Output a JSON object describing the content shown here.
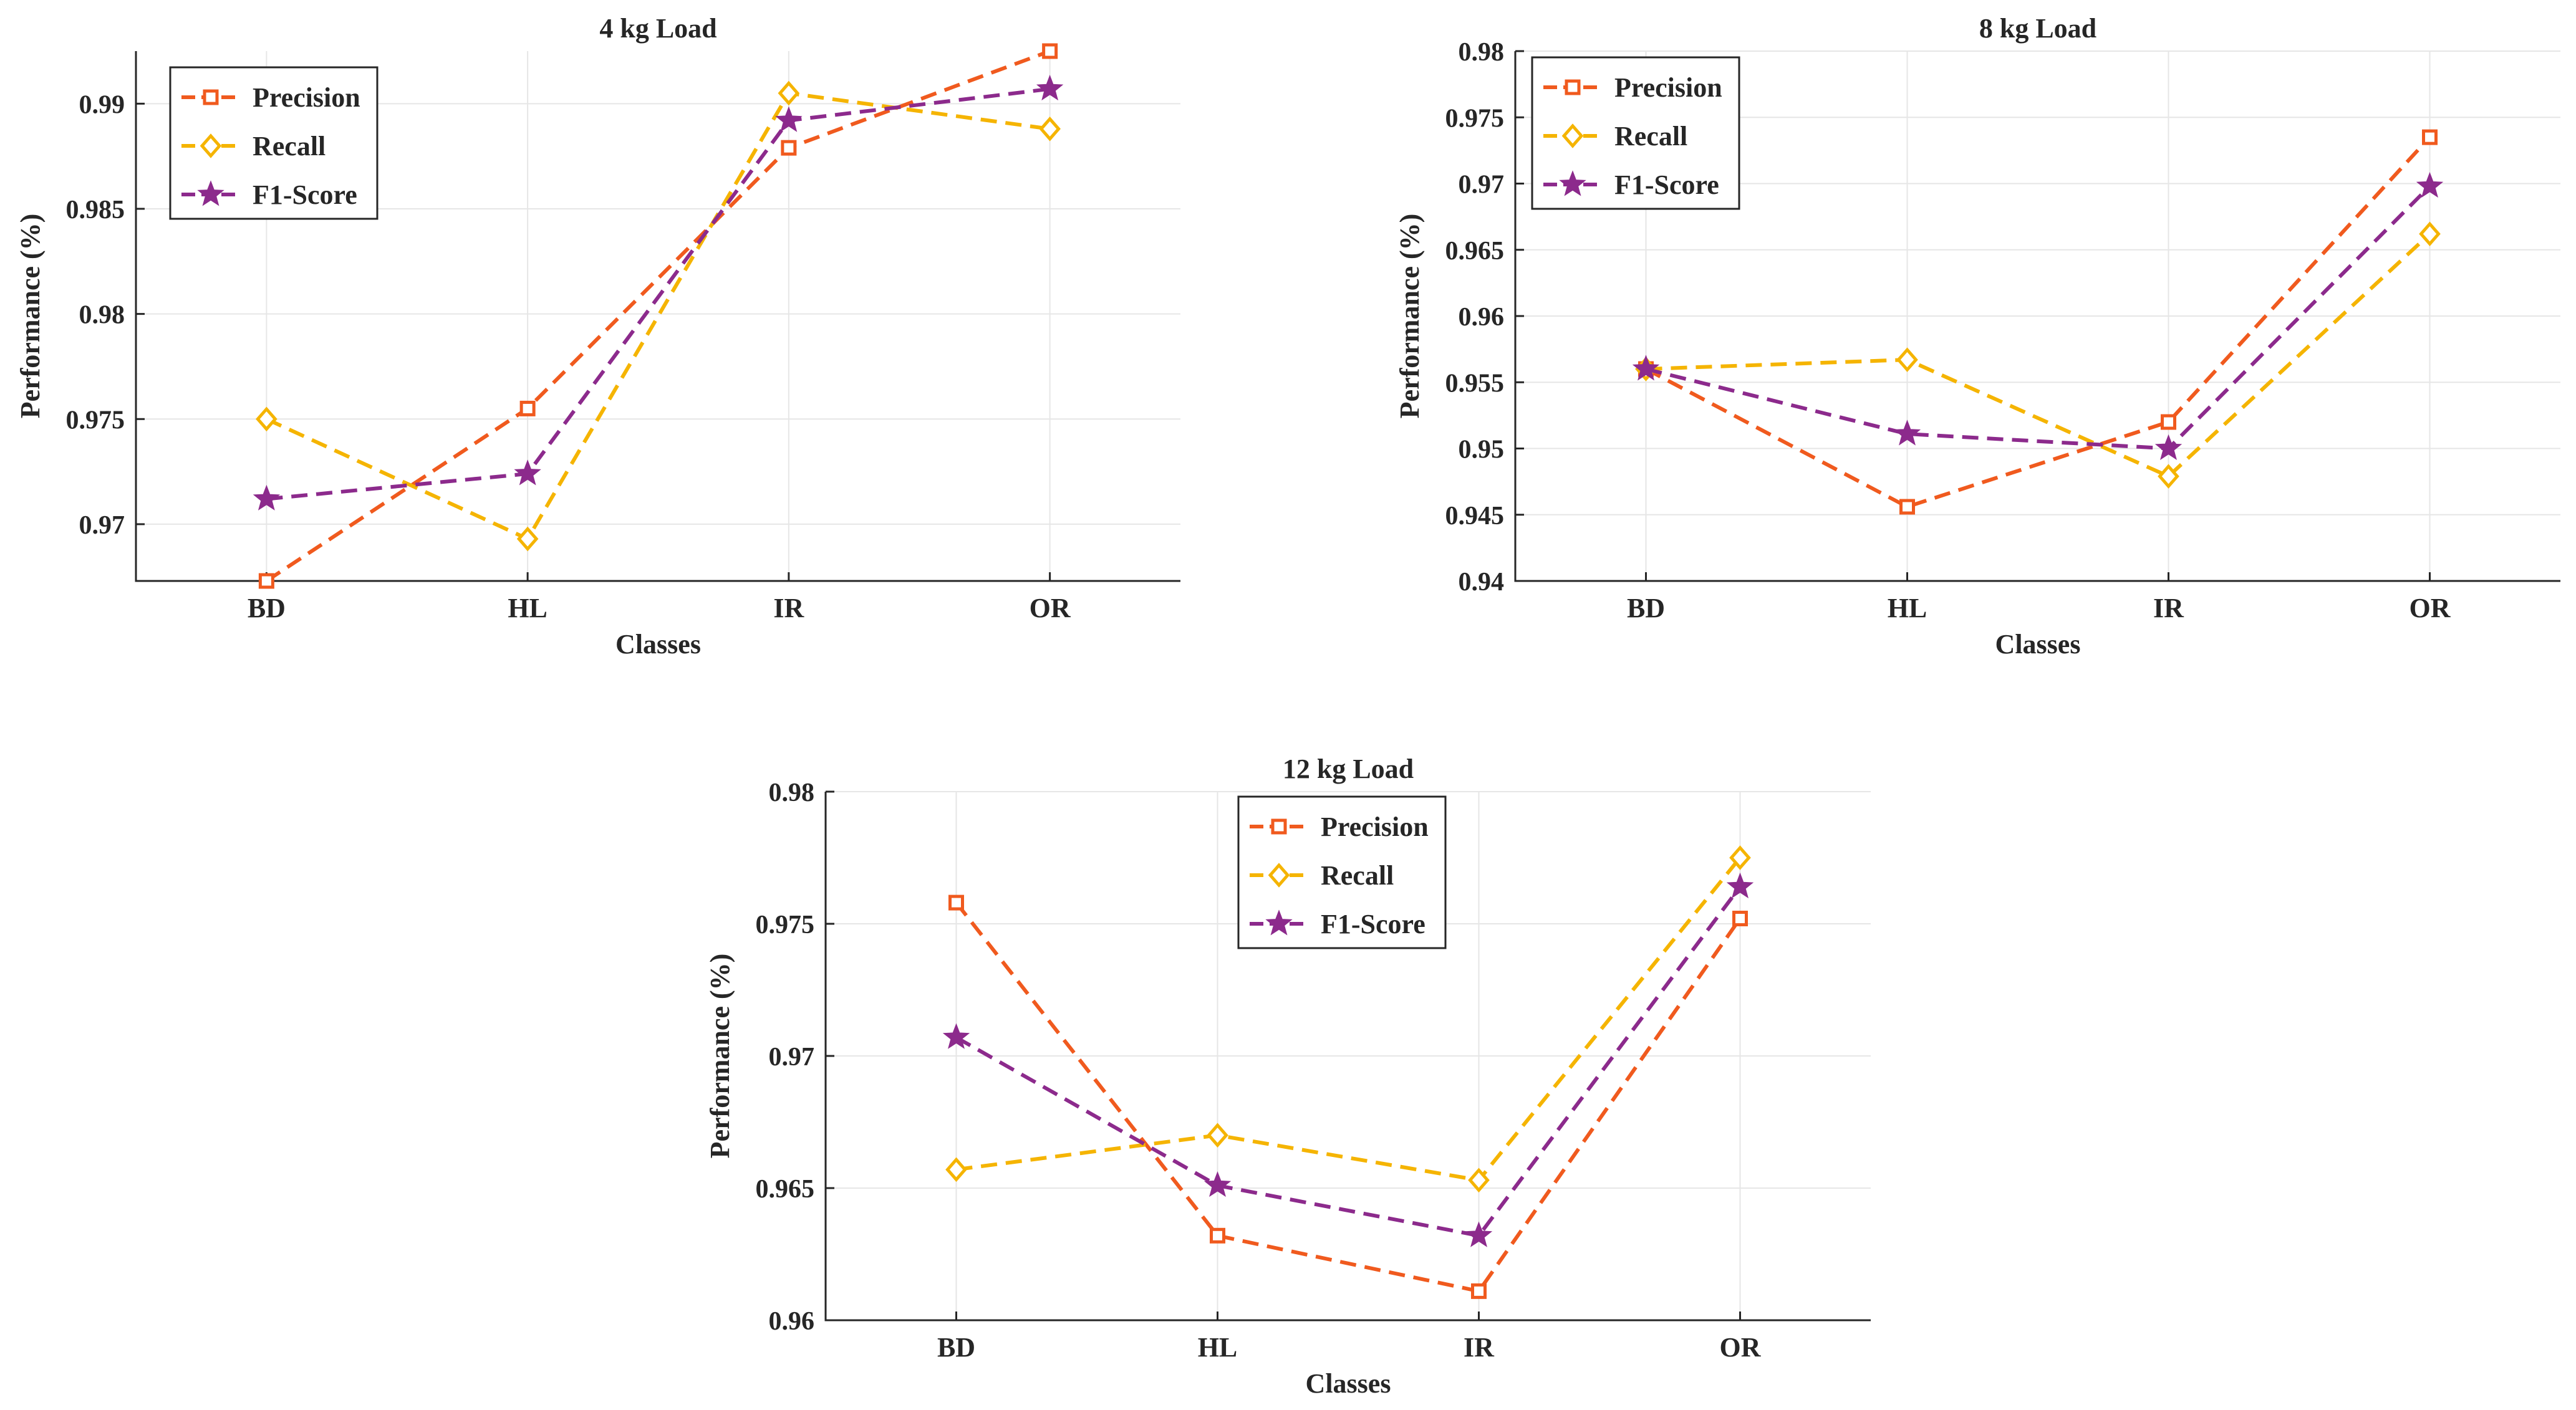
{
  "figure": {
    "colors": {
      "Precision": "#F05A1E",
      "Recall": "#F5B400",
      "F1-Score": "#8C2A8C"
    },
    "markers": {
      "Precision": "square",
      "Recall": "diamond",
      "F1-Score": "star"
    }
  },
  "chart_data": [
    {
      "type": "line",
      "title": "4 kg Load",
      "xlabel": "Classes",
      "ylabel": "Performance (%)",
      "categories": [
        "BD",
        "HL",
        "IR",
        "OR"
      ],
      "ylim": [
        0.9673,
        0.9925
      ],
      "yticks": [
        0.97,
        0.975,
        0.98,
        0.985,
        0.99
      ],
      "ytick_labels": [
        "0.97",
        "0.975",
        "0.98",
        "0.985",
        "0.99"
      ],
      "grid": true,
      "legend": "top-left",
      "series": [
        {
          "name": "Precision",
          "values": [
            0.9673,
            0.9755,
            0.9879,
            0.9925
          ]
        },
        {
          "name": "Recall",
          "values": [
            0.975,
            0.9693,
            0.9905,
            0.9888
          ]
        },
        {
          "name": "F1-Score",
          "values": [
            0.9712,
            0.9724,
            0.9892,
            0.9907
          ]
        }
      ]
    },
    {
      "type": "line",
      "title": "8 kg Load",
      "xlabel": "Classes",
      "ylabel": "Performance (%)",
      "categories": [
        "BD",
        "HL",
        "IR",
        "OR"
      ],
      "ylim": [
        0.94,
        0.98
      ],
      "yticks": [
        0.94,
        0.945,
        0.95,
        0.955,
        0.96,
        0.965,
        0.97,
        0.975,
        0.98
      ],
      "ytick_labels": [
        "0.94",
        "0.945",
        "0.95",
        "0.955",
        "0.96",
        "0.965",
        "0.97",
        "0.975",
        "0.98"
      ],
      "grid": true,
      "legend": "top-left",
      "series": [
        {
          "name": "Precision",
          "values": [
            0.956,
            0.9456,
            0.952,
            0.9735
          ]
        },
        {
          "name": "Recall",
          "values": [
            0.956,
            0.9567,
            0.9479,
            0.9662
          ]
        },
        {
          "name": "F1-Score",
          "values": [
            0.956,
            0.9511,
            0.95,
            0.9698
          ]
        }
      ]
    },
    {
      "type": "line",
      "title": "12 kg Load",
      "xlabel": "Classes",
      "ylabel": "Performance (%)",
      "categories": [
        "BD",
        "HL",
        "IR",
        "OR"
      ],
      "ylim": [
        0.96,
        0.98
      ],
      "yticks": [
        0.96,
        0.965,
        0.97,
        0.975,
        0.98
      ],
      "ytick_labels": [
        "0.96",
        "0.965",
        "0.97",
        "0.975",
        "0.98"
      ],
      "grid": true,
      "legend": "top-center",
      "series": [
        {
          "name": "Precision",
          "values": [
            0.9758,
            0.9632,
            0.9611,
            0.9752
          ]
        },
        {
          "name": "Recall",
          "values": [
            0.9657,
            0.967,
            0.9653,
            0.9775
          ]
        },
        {
          "name": "F1-Score",
          "values": [
            0.9707,
            0.9651,
            0.9632,
            0.9764
          ]
        }
      ]
    }
  ]
}
